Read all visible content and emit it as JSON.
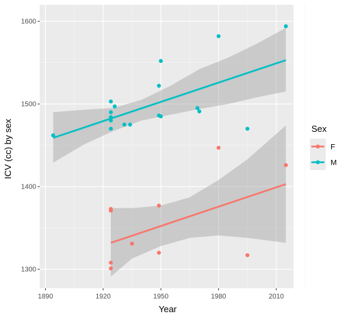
{
  "chart_data": {
    "type": "scatter",
    "xlabel": "Year",
    "ylabel": "ICV (cc) by sex",
    "xlim": [
      1887,
      2019
    ],
    "ylim": [
      1277,
      1620
    ],
    "x_ticks": [
      1890,
      1920,
      1950,
      1980,
      2010
    ],
    "y_ticks": [
      1300,
      1400,
      1500,
      1600
    ],
    "x_tick_labels": [
      "1890",
      "1920",
      "1950",
      "1980",
      "2010"
    ],
    "y_tick_labels": [
      "1300",
      "1400",
      "1500",
      "1600"
    ],
    "grid": true,
    "legend": {
      "title": "Sex",
      "placement": "right"
    },
    "series": [
      {
        "name": "F",
        "color": "#F8766D",
        "points": [
          {
            "x": 1924,
            "y": 1373
          },
          {
            "x": 1924,
            "y": 1371
          },
          {
            "x": 1924,
            "y": 1308
          },
          {
            "x": 1924,
            "y": 1301
          },
          {
            "x": 1935,
            "y": 1331
          },
          {
            "x": 1949,
            "y": 1377
          },
          {
            "x": 1949,
            "y": 1320
          },
          {
            "x": 1980,
            "y": 1447
          },
          {
            "x": 1995,
            "y": 1317
          },
          {
            "x": 2015,
            "y": 1426
          }
        ],
        "fit": {
          "x": [
            1924,
            2015
          ],
          "y": [
            1332,
            1403
          ]
        },
        "band": {
          "x": [
            1924,
            1935,
            1950,
            1965,
            1980,
            1995,
            2015
          ],
          "lower": [
            1291,
            1313,
            1328,
            1338,
            1341,
            1338,
            1332
          ],
          "upper": [
            1374,
            1374,
            1377,
            1387,
            1408,
            1433,
            1474
          ]
        }
      },
      {
        "name": "M",
        "color": "#00BFC4",
        "points": [
          {
            "x": 1894,
            "y": 1462
          },
          {
            "x": 1924,
            "y": 1503
          },
          {
            "x": 1924,
            "y": 1490
          },
          {
            "x": 1924,
            "y": 1484
          },
          {
            "x": 1924,
            "y": 1480
          },
          {
            "x": 1924,
            "y": 1470
          },
          {
            "x": 1926,
            "y": 1497
          },
          {
            "x": 1931,
            "y": 1475
          },
          {
            "x": 1934,
            "y": 1475
          },
          {
            "x": 1949,
            "y": 1522
          },
          {
            "x": 1949,
            "y": 1486
          },
          {
            "x": 1950,
            "y": 1485
          },
          {
            "x": 1950,
            "y": 1552
          },
          {
            "x": 1969,
            "y": 1495
          },
          {
            "x": 1970,
            "y": 1491
          },
          {
            "x": 1980,
            "y": 1582
          },
          {
            "x": 1995,
            "y": 1470
          },
          {
            "x": 2015,
            "y": 1594
          }
        ],
        "fit": {
          "x": [
            1894,
            2015
          ],
          "y": [
            1459,
            1553
          ]
        },
        "band": {
          "x": [
            1894,
            1910,
            1925,
            1940,
            1955,
            1970,
            1985,
            2000,
            2015
          ],
          "lower": [
            1429,
            1451,
            1467,
            1480,
            1487,
            1494,
            1500,
            1508,
            1515
          ],
          "upper": [
            1490,
            1493,
            1495,
            1505,
            1522,
            1542,
            1556,
            1573,
            1592
          ]
        }
      }
    ]
  }
}
